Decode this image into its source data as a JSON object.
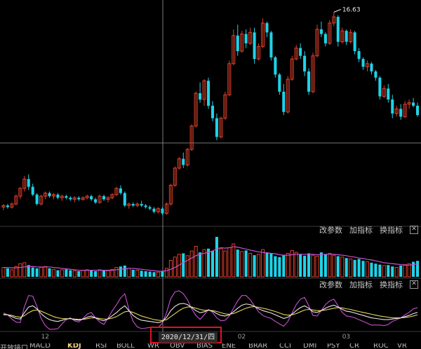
{
  "chart_data": {
    "type": "candlestick",
    "annotation_high": "16.63",
    "candles": [
      [
        4.1,
        4.3,
        3.9,
        4.2
      ],
      [
        4.2,
        4.3,
        4.0,
        4.1
      ],
      [
        4.1,
        4.4,
        4.0,
        4.3
      ],
      [
        4.3,
        4.9,
        4.2,
        4.8
      ],
      [
        4.8,
        5.4,
        4.6,
        5.3
      ],
      [
        5.3,
        6.1,
        5.1,
        5.9
      ],
      [
        5.9,
        6.2,
        5.2,
        5.4
      ],
      [
        5.4,
        5.6,
        4.8,
        4.9
      ],
      [
        4.9,
        5.0,
        4.2,
        4.3
      ],
      [
        4.3,
        4.9,
        4.2,
        4.8
      ],
      [
        4.8,
        5.1,
        4.6,
        5.0
      ],
      [
        5.0,
        5.1,
        4.7,
        4.8
      ],
      [
        4.8,
        5.0,
        4.6,
        4.9
      ],
      [
        4.9,
        5.0,
        4.6,
        4.7
      ],
      [
        4.7,
        4.9,
        4.5,
        4.8
      ],
      [
        4.8,
        4.9,
        4.6,
        4.7
      ],
      [
        4.7,
        4.8,
        4.5,
        4.6
      ],
      [
        4.6,
        4.8,
        4.4,
        4.7
      ],
      [
        4.7,
        4.8,
        4.5,
        4.6
      ],
      [
        4.6,
        4.8,
        4.5,
        4.7
      ],
      [
        4.7,
        4.9,
        4.6,
        4.8
      ],
      [
        4.8,
        4.9,
        4.5,
        4.6
      ],
      [
        4.6,
        4.7,
        4.3,
        4.4
      ],
      [
        4.4,
        4.9,
        4.3,
        4.8
      ],
      [
        4.8,
        4.9,
        4.5,
        4.6
      ],
      [
        4.6,
        4.8,
        4.4,
        4.7
      ],
      [
        4.7,
        5.0,
        4.6,
        4.9
      ],
      [
        4.9,
        5.4,
        4.8,
        5.3
      ],
      [
        5.3,
        5.5,
        4.9,
        5.0
      ],
      [
        5.0,
        5.1,
        4.1,
        4.2
      ],
      [
        4.2,
        4.4,
        4.0,
        4.3
      ],
      [
        4.3,
        4.4,
        4.1,
        4.2
      ],
      [
        4.2,
        4.4,
        4.1,
        4.3
      ],
      [
        4.3,
        4.5,
        4.1,
        4.2
      ],
      [
        4.2,
        4.3,
        4.0,
        4.1
      ],
      [
        4.1,
        4.2,
        3.9,
        4.0
      ],
      [
        4.0,
        4.1,
        3.7,
        3.8
      ],
      [
        3.8,
        4.1,
        3.7,
        4.0
      ],
      [
        4.0,
        4.1,
        3.6,
        3.7
      ],
      [
        3.7,
        4.4,
        3.6,
        4.3
      ],
      [
        4.3,
        5.6,
        4.2,
        5.5
      ],
      [
        5.5,
        6.7,
        5.4,
        6.6
      ],
      [
        6.6,
        7.3,
        6.5,
        7.2
      ],
      [
        7.2,
        7.6,
        6.6,
        6.8
      ],
      [
        6.8,
        7.9,
        6.7,
        7.8
      ],
      [
        7.8,
        9.4,
        7.7,
        9.3
      ],
      [
        9.3,
        11.5,
        9.2,
        11.4
      ],
      [
        11.4,
        12.1,
        10.8,
        11.0
      ],
      [
        11.0,
        12.3,
        10.6,
        12.2
      ],
      [
        12.2,
        12.4,
        10.4,
        10.6
      ],
      [
        10.6,
        10.9,
        9.6,
        9.8
      ],
      [
        9.8,
        10.1,
        8.4,
        8.6
      ],
      [
        8.6,
        9.9,
        8.5,
        9.8
      ],
      [
        9.8,
        11.5,
        9.7,
        11.3
      ],
      [
        11.3,
        13.5,
        11.2,
        13.3
      ],
      [
        13.3,
        15.5,
        13.2,
        15.1
      ],
      [
        15.1,
        15.8,
        13.8,
        14.1
      ],
      [
        14.1,
        15.4,
        14.0,
        15.2
      ],
      [
        15.2,
        15.5,
        14.3,
        14.6
      ],
      [
        14.6,
        15.6,
        14.5,
        15.3
      ],
      [
        15.3,
        15.6,
        13.3,
        13.6
      ],
      [
        13.6,
        14.6,
        13.5,
        14.4
      ],
      [
        14.4,
        16.2,
        14.3,
        15.9
      ],
      [
        15.9,
        16.0,
        15.0,
        15.3
      ],
      [
        15.3,
        15.4,
        13.5,
        13.7
      ],
      [
        13.7,
        13.8,
        12.4,
        12.6
      ],
      [
        12.6,
        12.7,
        11.3,
        11.5
      ],
      [
        11.5,
        12.0,
        10.0,
        10.2
      ],
      [
        10.2,
        12.5,
        10.1,
        12.3
      ],
      [
        12.3,
        13.8,
        12.2,
        13.6
      ],
      [
        13.6,
        14.5,
        13.5,
        14.3
      ],
      [
        14.3,
        14.6,
        13.6,
        13.8
      ],
      [
        13.8,
        14.1,
        12.5,
        12.8
      ],
      [
        12.8,
        13.0,
        11.3,
        11.5
      ],
      [
        11.5,
        14.0,
        11.4,
        13.8
      ],
      [
        13.8,
        15.8,
        13.7,
        15.5
      ],
      [
        15.5,
        16.0,
        15.0,
        15.2
      ],
      [
        15.2,
        15.3,
        14.4,
        14.6
      ],
      [
        14.6,
        16.1,
        14.5,
        15.9
      ],
      [
        15.9,
        16.6,
        15.7,
        16.3
      ],
      [
        16.3,
        16.4,
        14.4,
        14.7
      ],
      [
        14.7,
        15.6,
        14.6,
        15.4
      ],
      [
        15.4,
        15.5,
        14.5,
        14.7
      ],
      [
        14.7,
        15.5,
        14.6,
        15.3
      ],
      [
        15.3,
        15.4,
        13.9,
        14.1
      ],
      [
        14.1,
        14.3,
        13.4,
        13.6
      ],
      [
        13.6,
        13.7,
        12.9,
        13.1
      ],
      [
        13.1,
        13.5,
        12.8,
        13.3
      ],
      [
        13.3,
        13.4,
        12.6,
        12.8
      ],
      [
        12.8,
        12.9,
        12.2,
        12.4
      ],
      [
        12.4,
        12.5,
        11.0,
        11.2
      ],
      [
        11.2,
        11.9,
        11.1,
        11.7
      ],
      [
        11.7,
        12.0,
        10.8,
        11.0
      ],
      [
        11.0,
        11.3,
        9.8,
        10.1
      ],
      [
        10.1,
        10.6,
        9.9,
        10.4
      ],
      [
        10.4,
        10.7,
        9.7,
        9.9
      ],
      [
        9.9,
        10.9,
        9.8,
        10.7
      ],
      [
        10.7,
        11.0,
        10.4,
        10.8
      ],
      [
        10.8,
        11.1,
        10.5,
        10.6
      ],
      [
        10.6,
        10.8,
        9.9,
        10.0
      ]
    ],
    "kdj": {
      "K": [
        50,
        48,
        42,
        36,
        34,
        55,
        74,
        78,
        68,
        52,
        40,
        32,
        28,
        26,
        30,
        34,
        36,
        32,
        30,
        34,
        40,
        44,
        38,
        32,
        28,
        35,
        45,
        55,
        68,
        78,
        62,
        46,
        36,
        30,
        28,
        26,
        24,
        22,
        26,
        40,
        62,
        76,
        84,
        86,
        82,
        72,
        62,
        55,
        58,
        64,
        60,
        52,
        46,
        44,
        48,
        58,
        70,
        80,
        84,
        82,
        76,
        68,
        62,
        58,
        54,
        48,
        42,
        36,
        40,
        50,
        62,
        72,
        78,
        70,
        58,
        56,
        62,
        70,
        76,
        80,
        74,
        66,
        60,
        58,
        54,
        50,
        46,
        42,
        38,
        36,
        34,
        32,
        32,
        34,
        36,
        38,
        42,
        46,
        52,
        56
      ],
      "D": [
        48,
        48,
        46,
        42,
        40,
        45,
        55,
        62,
        64,
        60,
        54,
        48,
        42,
        38,
        36,
        35,
        35,
        34,
        33,
        33,
        35,
        38,
        38,
        36,
        34,
        34,
        37,
        42,
        50,
        58,
        60,
        56,
        50,
        44,
        40,
        36,
        32,
        30,
        29,
        32,
        42,
        52,
        62,
        70,
        74,
        74,
        70,
        66,
        63,
        63,
        62,
        59,
        55,
        51,
        50,
        52,
        58,
        64,
        70,
        74,
        75,
        73,
        70,
        67,
        63,
        59,
        54,
        49,
        47,
        48,
        52,
        58,
        64,
        66,
        64,
        62,
        62,
        64,
        67,
        70,
        72,
        71,
        68,
        66,
        62,
        59,
        56,
        53,
        50,
        47,
        44,
        42,
        40,
        38,
        38,
        38,
        39,
        41,
        44,
        48
      ],
      "J": [
        54,
        48,
        34,
        24,
        22,
        75,
        112,
        110,
        76,
        36,
        12,
        0,
        0,
        2,
        18,
        32,
        38,
        28,
        24,
        36,
        50,
        56,
        38,
        24,
        16,
        37,
        61,
        81,
        104,
        118,
        66,
        26,
        8,
        2,
        4,
        6,
        8,
        6,
        20,
        56,
        102,
        124,
        128,
        118,
        98,
        68,
        46,
        33,
        48,
        66,
        56,
        38,
        28,
        30,
        44,
        70,
        94,
        112,
        112,
        98,
        78,
        58,
        46,
        40,
        36,
        26,
        18,
        10,
        26,
        54,
        82,
        100,
        106,
        78,
        46,
        44,
        62,
        82,
        94,
        100,
        78,
        56,
        44,
        42,
        38,
        32,
        26,
        20,
        14,
        14,
        14,
        12,
        16,
        26,
        32,
        38,
        48,
        56,
        68,
        72
      ]
    },
    "volume": [
      20,
      18,
      15,
      22,
      28,
      30,
      25,
      20,
      18,
      20,
      22,
      18,
      16,
      14,
      15,
      16,
      14,
      13,
      12,
      14,
      15,
      14,
      12,
      15,
      14,
      13,
      16,
      20,
      22,
      24,
      18,
      15,
      14,
      13,
      12,
      11,
      10,
      10,
      12,
      18,
      35,
      42,
      48,
      50,
      45,
      55,
      65,
      52,
      58,
      60,
      55,
      85,
      60,
      55,
      62,
      70,
      58,
      54,
      56,
      50,
      46,
      48,
      58,
      52,
      50,
      44,
      42,
      46,
      50,
      56,
      52,
      48,
      45,
      50,
      46,
      44,
      52,
      48,
      50,
      46,
      44,
      42,
      40,
      38,
      36,
      38,
      34,
      32,
      30,
      28,
      26,
      24,
      25,
      22,
      20,
      24,
      26,
      28,
      32,
      34
    ],
    "vol_ma": [
      20,
      20,
      19,
      19,
      20,
      21,
      22,
      22,
      21,
      21,
      21,
      21,
      20,
      19,
      18,
      17,
      16,
      15,
      14,
      14,
      14,
      14,
      14,
      14,
      14,
      14,
      14,
      15,
      16,
      17,
      18,
      18,
      17,
      16,
      15,
      14,
      13,
      12,
      12,
      13,
      16,
      20,
      25,
      30,
      35,
      40,
      45,
      48,
      50,
      52,
      55,
      60,
      62,
      61,
      62,
      64,
      63,
      61,
      59,
      57,
      55,
      53,
      52,
      51,
      50,
      49,
      47,
      46,
      46,
      47,
      48,
      48,
      48,
      48,
      48,
      47,
      47,
      48,
      48,
      48,
      47,
      46,
      45,
      43,
      42,
      40,
      39,
      37,
      36,
      34,
      32,
      30,
      29,
      28,
      27,
      26,
      25,
      25,
      26,
      27
    ],
    "x_ticks": [
      {
        "i": 10,
        "label": "12"
      },
      {
        "i": 57,
        "label": "02"
      },
      {
        "i": 82,
        "label": "03"
      }
    ]
  },
  "toolbars": {
    "vol": {
      "change_params": "改参数",
      "add_indicator": "加指标",
      "switch_indicator": "换指标"
    },
    "kdj": {
      "change_params": "改参数",
      "add_indicator": "加指标",
      "switch_indicator": "换指标"
    }
  },
  "cursor_date": "2020/12/31/四",
  "tabs": [
    "开放接口",
    "MACD",
    "KDJ",
    "RSI",
    "BOLL",
    "WR",
    "OBV",
    "BIAS",
    "ENE",
    "BRAR",
    "CCI",
    "DMI",
    "PSY",
    "CR",
    "ROC",
    "VR"
  ],
  "active_tab": "KDJ",
  "colors": {
    "up": "#e0402a",
    "down": "#1fd3e8",
    "k": "#e8e8e8",
    "d": "#e6d256",
    "j": "#c94fd4",
    "ma": "#c94fd4"
  }
}
